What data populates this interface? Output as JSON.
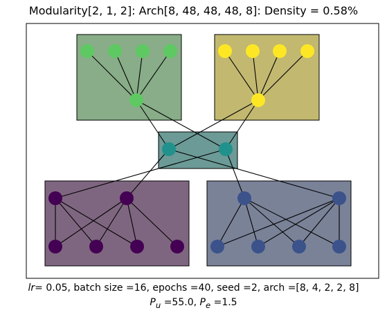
{
  "title": "Modularity[2, 1, 2]: Arch[8, 48, 48, 48, 8]: Density = 0.58%",
  "caption": {
    "lr_symbol": "lr",
    "lr_rest": "=  0.05, batch size =16, epochs =40, seed =2, arch =[8, 4, 2, 2, 8]",
    "pu_symbol": "P",
    "pu_sub": "u",
    "pu_rest": " =55.0, ",
    "pe_symbol": "P",
    "pe_sub": "e",
    "pe_rest": " =1.5"
  },
  "colors": {
    "green_node": "#5ec962",
    "green_box": "#88ad88",
    "yellow_node": "#fde725",
    "yellow_box": "#c2b870",
    "teal_node": "#21918c",
    "teal_box": "#6c9a96",
    "purple_node": "#440154",
    "purple_box": "#7f6680",
    "blue_node": "#3b528b",
    "blue_box": "#7a8298"
  },
  "modules": [
    {
      "id": "top-left",
      "color": "green"
    },
    {
      "id": "top-right",
      "color": "yellow"
    },
    {
      "id": "middle",
      "color": "teal"
    },
    {
      "id": "bottom-left",
      "color": "purple"
    },
    {
      "id": "bottom-right",
      "color": "blue"
    }
  ]
}
